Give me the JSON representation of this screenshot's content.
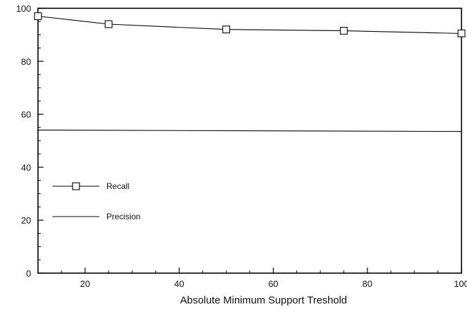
{
  "chart_data": {
    "type": "line",
    "xlabel": "Absolute Minimum Support Treshold",
    "ylabel": "",
    "xlim": [
      10,
      100
    ],
    "ylim": [
      0,
      100
    ],
    "x_ticks": [
      20,
      40,
      60,
      80,
      100
    ],
    "y_ticks": [
      0,
      20,
      40,
      60,
      80,
      100
    ],
    "grid": false,
    "legend_position": "left",
    "series": [
      {
        "name": "Recall",
        "marker": "square",
        "color": "#000000",
        "x": [
          10,
          25,
          50,
          75,
          100
        ],
        "y": [
          97,
          94,
          92,
          91.5,
          90.5
        ]
      },
      {
        "name": "Precision",
        "marker": "none",
        "color": "#000000",
        "x": [
          10,
          100
        ],
        "y": [
          54,
          53.5
        ]
      }
    ]
  }
}
